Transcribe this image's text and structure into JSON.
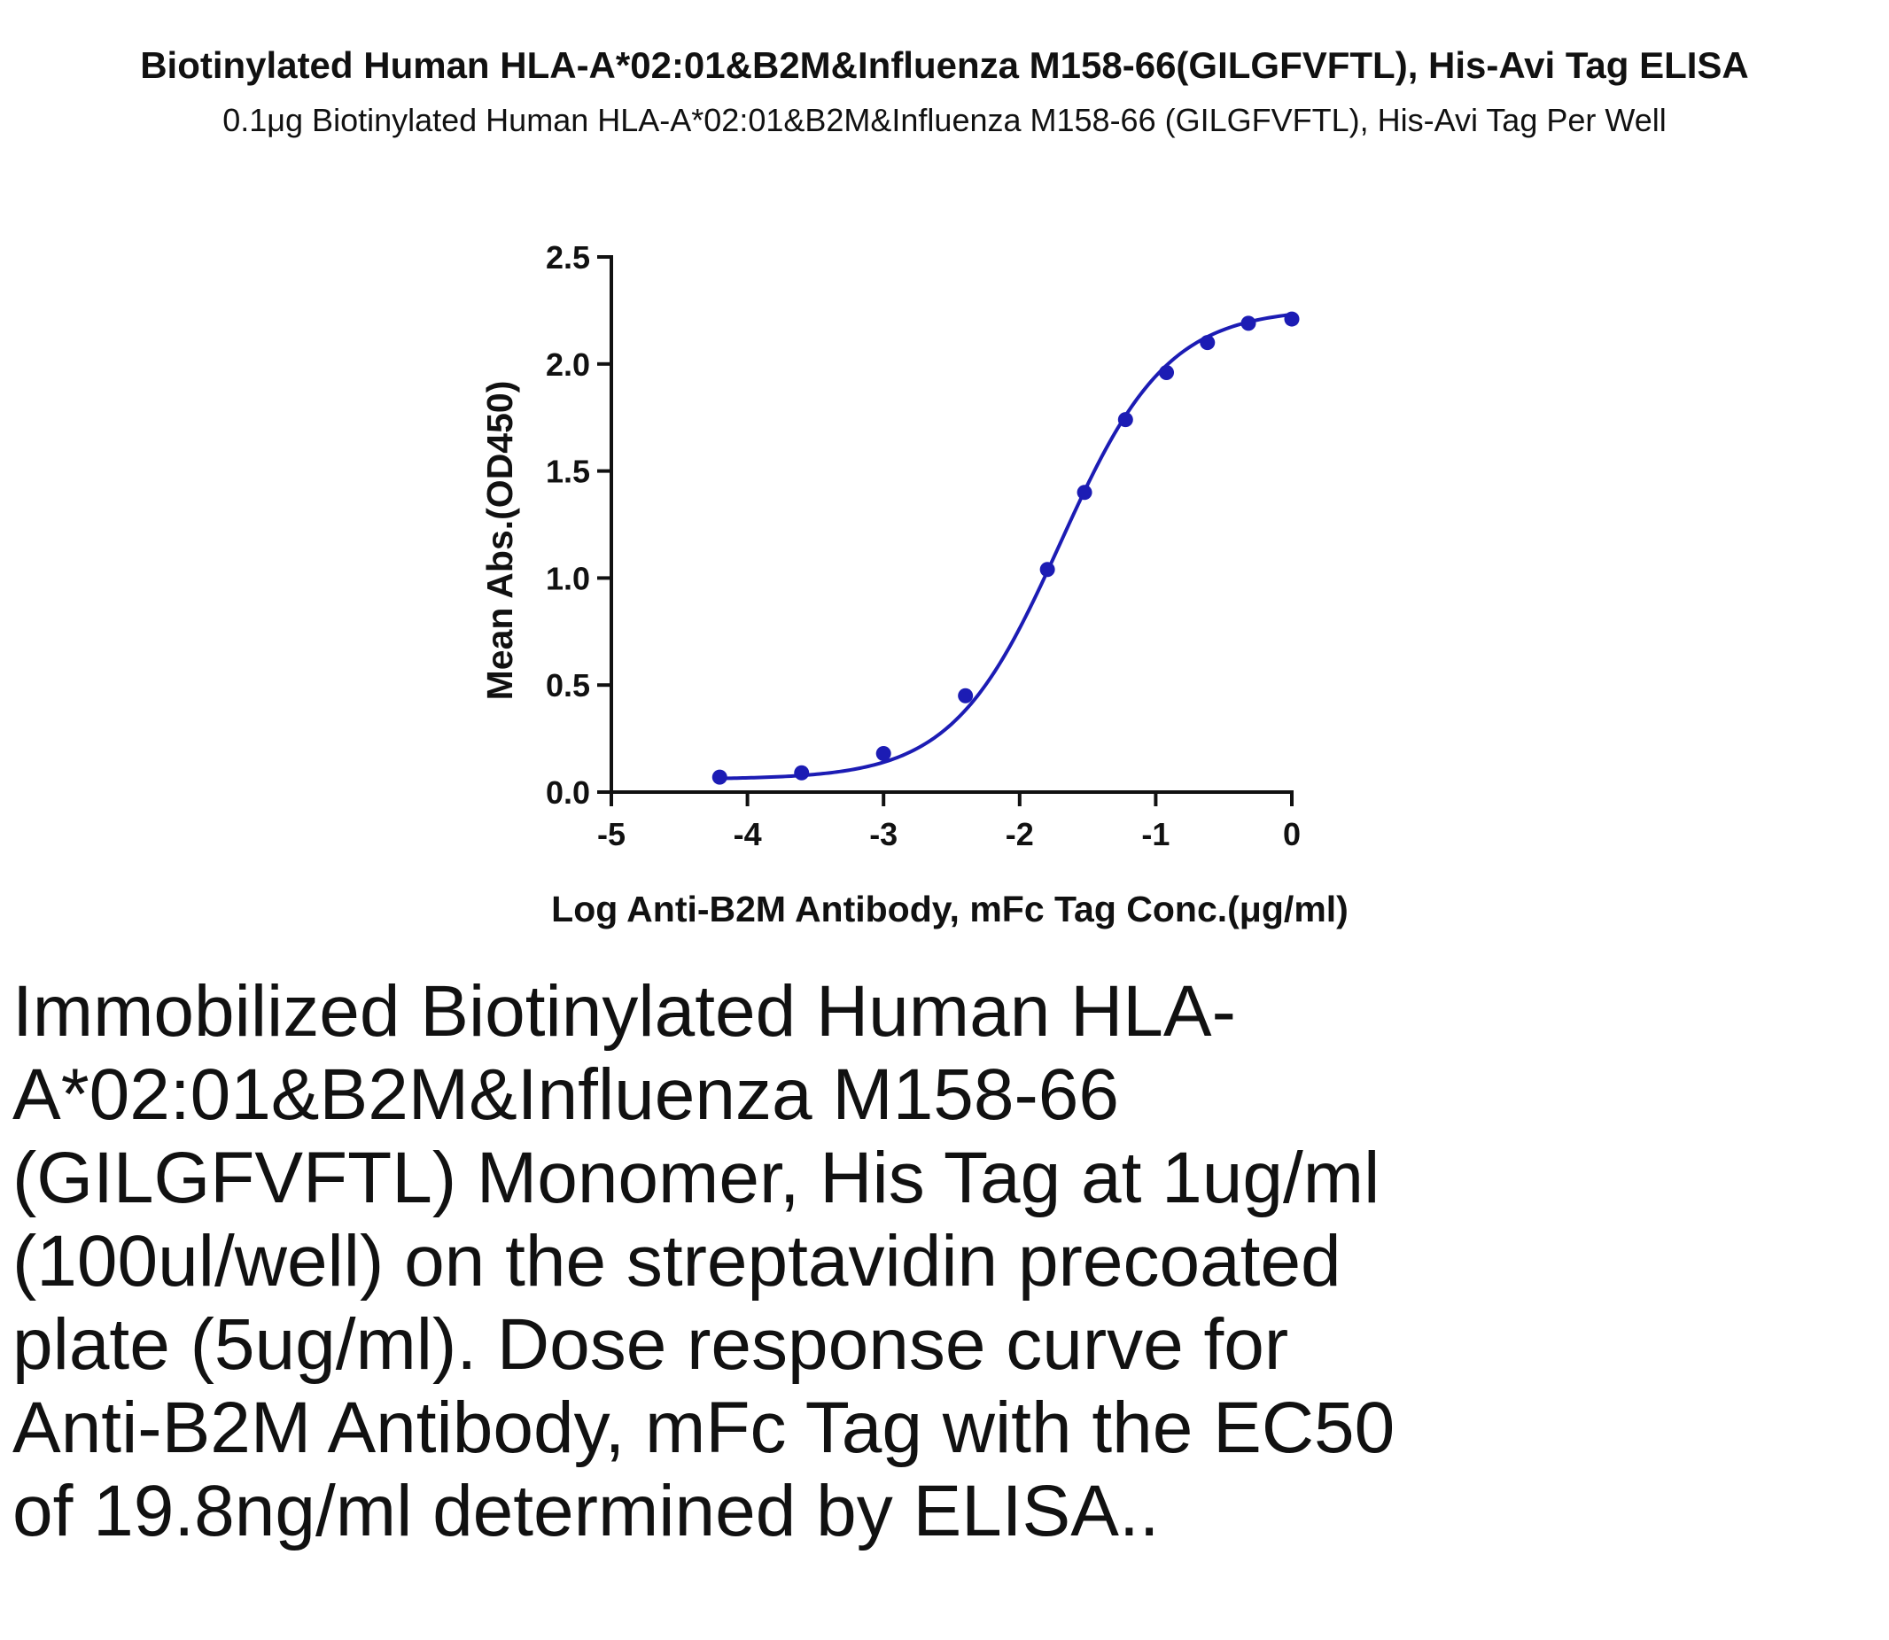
{
  "chart_data": {
    "type": "scatter",
    "title": "Biotinylated Human HLA-A*02:01&B2M&Influenza M158-66(GILGFVFTL), His-Avi Tag ELISA",
    "subtitle": "0.1μg Biotinylated Human HLA-A*02:01&B2M&Influenza M158-66 (GILGFVFTL), His-Avi Tag Per Well",
    "xlabel": "Log Anti-B2M Antibody, mFc Tag Conc.(μg/ml)",
    "ylabel": "Mean Abs.(OD450)",
    "xlim": [
      -5,
      0
    ],
    "ylim": [
      0,
      2.5
    ],
    "x_ticks": [
      "-5",
      "-4",
      "-3",
      "-2",
      "-1",
      "0"
    ],
    "y_ticks": [
      "0.0",
      "0.5",
      "1.0",
      "1.5",
      "2.0",
      "2.5"
    ],
    "grid": false,
    "series": [
      {
        "color": "#1c1cb4",
        "x": [
          -4.204,
          -3.602,
          -3.0,
          -2.398,
          -1.796,
          -1.523,
          -1.222,
          -0.921,
          -0.62,
          -0.319,
          0.0
        ],
        "y": [
          0.07,
          0.09,
          0.18,
          0.45,
          1.04,
          1.4,
          1.74,
          1.96,
          2.1,
          2.19,
          2.21
        ],
        "fit": "four-parameter logistic"
      }
    ]
  },
  "caption": "Immobilized Biotinylated Human HLA-A*02:01&B2M&Influenza M158-66 (GILGFVFTL) Monomer, His Tag at 1ug/ml (100ul/well) on the streptavidin precoated plate (5ug/ml). Dose response curve for Anti-B2M Antibody, mFc Tag with the EC50 of 19.8ng/ml determined by ELISA.."
}
